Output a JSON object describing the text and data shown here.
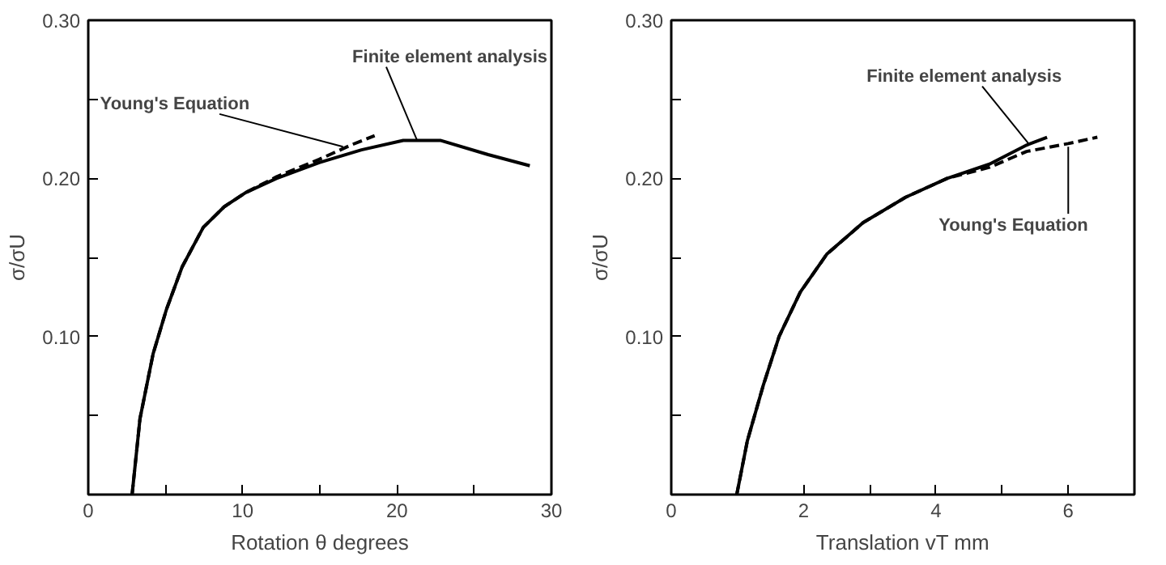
{
  "chart_data": [
    {
      "type": "line",
      "xlabel": "Rotation θ degrees",
      "ylabel": "σ/σU",
      "xlim": [
        0,
        30
      ],
      "ylim": [
        0,
        0.3
      ],
      "xticks": [
        0,
        {
          "value": 5,
          "label": null
        },
        10,
        {
          "value": 15,
          "label": null
        },
        20,
        {
          "value": 25,
          "label": null
        },
        30
      ],
      "yticks": [
        {
          "value": 0.05,
          "label": null
        },
        {
          "value": 0.1,
          "label": "0.10"
        },
        {
          "value": 0.15,
          "label": null
        },
        {
          "value": 0.2,
          "label": "0.20"
        },
        {
          "value": 0.25,
          "label": null
        },
        {
          "value": 0.3,
          "label": "0.30"
        }
      ],
      "series": [
        {
          "color": "#000000",
          "line_style": "solid",
          "x": [
            2.84,
            3.35,
            4.2,
            5.06,
            6.08,
            7.45,
            8.8,
            10.2,
            12.2,
            14.96,
            17.7,
            20.4,
            22.8,
            25.9,
            28.6
          ],
          "values": [
            0,
            0.048,
            0.089,
            0.117,
            0.144,
            0.169,
            0.182,
            0.191,
            0.2,
            0.21,
            0.218,
            0.224,
            0.224,
            0.215,
            0.208
          ]
        },
        {
          "color": "#000000",
          "line_style": "dashed",
          "x": [
            2.84,
            3.35,
            4.2,
            5.06,
            6.08,
            7.45,
            8.8,
            10.2,
            12.2,
            14.96,
            17.0,
            18.55
          ],
          "values": [
            0,
            0.048,
            0.089,
            0.117,
            0.144,
            0.169,
            0.182,
            0.191,
            0.201,
            0.212,
            0.221,
            0.227
          ]
        }
      ],
      "annotations": [
        {
          "text": "Young's Equation",
          "x": 16.5,
          "y": 0.22
        },
        {
          "text": "Finite element analysis",
          "x": 21.3,
          "y": 0.224
        }
      ]
    },
    {
      "type": "line",
      "xlabel": "Translation vT mm",
      "ylabel": "σ/σU",
      "xlim": [
        0,
        7
      ],
      "ylim": [
        0,
        0.3
      ],
      "xticks": [
        0,
        {
          "value": 1,
          "label": null
        },
        2,
        {
          "value": 3,
          "label": null
        },
        4,
        {
          "value": 5,
          "label": null
        },
        6
      ],
      "yticks": [
        {
          "value": 0.05,
          "label": null
        },
        {
          "value": 0.1,
          "label": "0.10"
        },
        {
          "value": 0.15,
          "label": null
        },
        {
          "value": 0.2,
          "label": "0.20"
        },
        {
          "value": 0.25,
          "label": null
        },
        {
          "value": 0.3,
          "label": "0.30"
        }
      ],
      "series": [
        {
          "color": "#000000",
          "line_style": "solid",
          "x": [
            0.99,
            1.15,
            1.39,
            1.63,
            1.95,
            2.35,
            2.9,
            3.54,
            4.17,
            4.81,
            5.37,
            5.68
          ],
          "values": [
            0,
            0.034,
            0.069,
            0.1,
            0.128,
            0.152,
            0.172,
            0.188,
            0.2,
            0.209,
            0.221,
            0.226
          ]
        },
        {
          "color": "#000000",
          "line_style": "dashed",
          "x": [
            0.99,
            1.15,
            1.39,
            1.63,
            1.95,
            2.35,
            2.9,
            3.54,
            4.17,
            4.81,
            5.37,
            6.0,
            6.44
          ],
          "values": [
            0,
            0.034,
            0.069,
            0.1,
            0.128,
            0.152,
            0.172,
            0.188,
            0.2,
            0.207,
            0.217,
            0.222,
            0.226
          ]
        }
      ],
      "annotations": [
        {
          "text": "Finite element analysis",
          "x": 5.4,
          "y": 0.222
        },
        {
          "text": "Young's Equation",
          "x": 6.0,
          "y": 0.22
        }
      ]
    }
  ]
}
